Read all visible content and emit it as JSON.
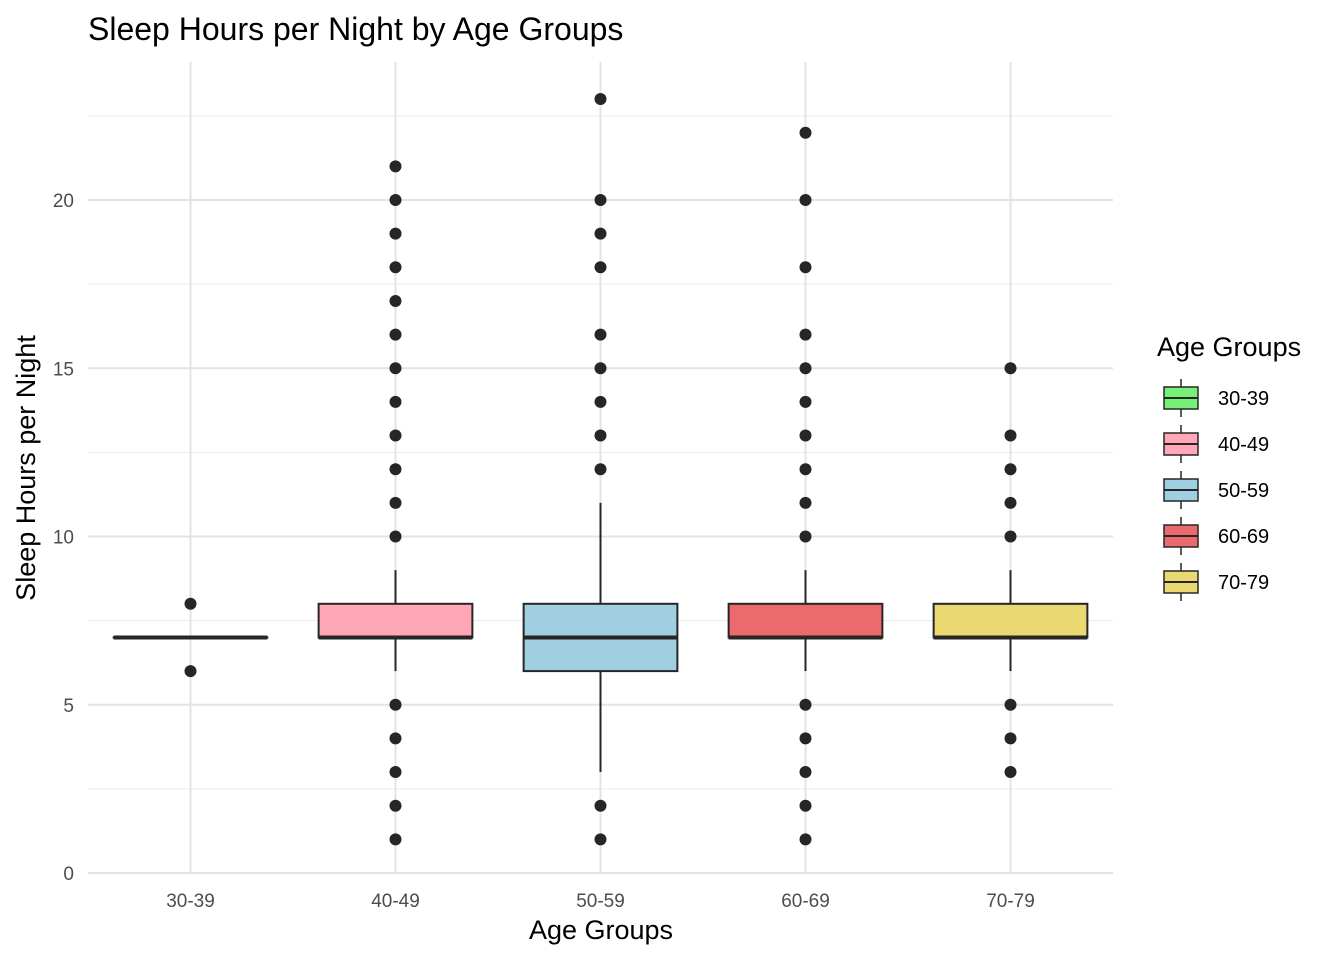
{
  "chart_data": {
    "type": "boxplot",
    "title": "Sleep Hours per Night by Age Groups",
    "xlabel": "Age Groups",
    "ylabel": "Sleep Hours per Night",
    "ylim": [
      0,
      23.5
    ],
    "y_ticks": [
      0,
      5,
      10,
      15,
      20
    ],
    "grid": true,
    "legend": {
      "title": "Age Groups",
      "placement": "right"
    },
    "categories": [
      "30-39",
      "40-49",
      "50-59",
      "60-69",
      "70-79"
    ],
    "series": [
      {
        "name": "30-39",
        "color": "#77F077",
        "min": 7,
        "q1": 7,
        "median": 7,
        "q3": 7,
        "max": 7,
        "outliers": [
          6,
          8
        ]
      },
      {
        "name": "40-49",
        "color": "#FFA7B6",
        "min": 6,
        "q1": 7,
        "median": 7,
        "q3": 8,
        "max": 9,
        "outliers": [
          1,
          2,
          3,
          4,
          5,
          10,
          11,
          12,
          13,
          14,
          15,
          16,
          17,
          18,
          19,
          20,
          21
        ]
      },
      {
        "name": "50-59",
        "color": "#9FCFE1",
        "min": 3,
        "q1": 6,
        "median": 7,
        "q3": 8,
        "max": 11,
        "outliers": [
          1,
          2,
          12,
          13,
          14,
          15,
          16,
          18,
          19,
          20,
          23
        ]
      },
      {
        "name": "60-69",
        "color": "#EA6A6E",
        "min": 6,
        "q1": 7,
        "median": 7,
        "q3": 8,
        "max": 9,
        "outliers": [
          1,
          2,
          3,
          4,
          5,
          10,
          11,
          12,
          13,
          14,
          15,
          16,
          18,
          20,
          22
        ]
      },
      {
        "name": "70-79",
        "color": "#E9D970",
        "min": 6,
        "q1": 7,
        "median": 7,
        "q3": 8,
        "max": 9,
        "outliers": [
          3,
          4,
          5,
          10,
          11,
          12,
          13,
          15
        ]
      }
    ]
  }
}
